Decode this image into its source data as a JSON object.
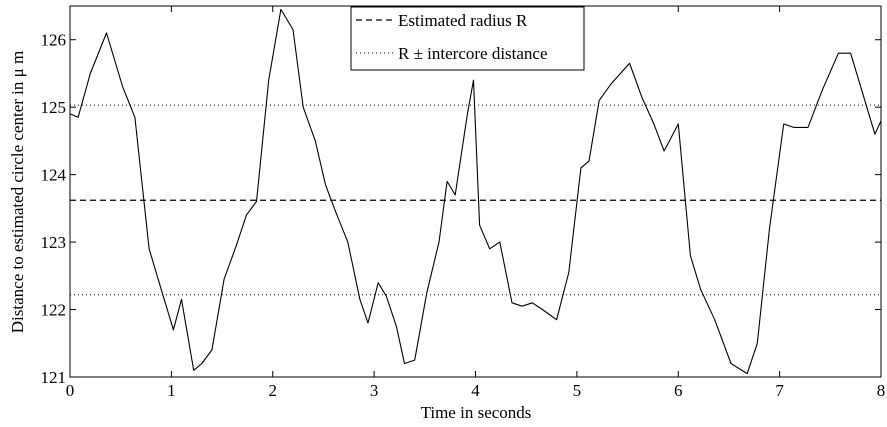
{
  "chart_data": {
    "type": "line",
    "xlabel": "Time in seconds",
    "ylabel": "Distance to estimated circle center in μ m",
    "xlim": [
      0,
      8
    ],
    "ylim": [
      121,
      126.5
    ],
    "x_ticks": [
      0,
      1,
      2,
      3,
      4,
      5,
      6,
      7,
      8
    ],
    "y_ticks": [
      121,
      122,
      123,
      124,
      125,
      126
    ],
    "x_tick_labels": [
      "0",
      "1",
      "2",
      "3",
      "4",
      "5",
      "6",
      "7",
      "8"
    ],
    "y_tick_labels": [
      "121",
      "122",
      "123",
      "124",
      "125",
      "126"
    ],
    "grid": false,
    "legend": {
      "placement": "top-center",
      "entries": [
        "Estimated radius R",
        "R ± intercore distance"
      ]
    },
    "reference_lines": {
      "estimated_radius": 123.62,
      "radius_upper": 125.03,
      "radius_lower": 122.22
    },
    "series": [
      {
        "x": [
          0.0,
          0.08,
          0.2,
          0.36,
          0.52,
          0.64,
          0.78,
          0.9,
          1.02,
          1.1,
          1.22,
          1.3,
          1.4,
          1.52,
          1.64,
          1.74,
          1.84,
          1.96,
          2.08,
          2.2,
          2.3,
          2.42,
          2.52,
          2.62,
          2.74,
          2.86,
          2.94,
          3.04,
          3.12,
          3.22,
          3.3,
          3.4,
          3.52,
          3.64,
          3.72,
          3.8,
          3.92,
          3.98,
          4.04,
          4.14,
          4.24,
          4.36,
          4.46,
          4.56,
          4.66,
          4.8,
          4.92,
          5.04,
          5.12,
          5.22,
          5.34,
          5.52,
          5.64,
          5.76,
          5.86,
          6.0,
          6.12,
          6.22,
          6.36,
          6.52,
          6.68,
          6.78,
          6.9,
          7.04,
          7.14,
          7.28,
          7.42,
          7.58,
          7.7,
          7.82,
          7.94,
          8.0
        ],
        "values": [
          124.9,
          124.85,
          125.5,
          126.1,
          125.3,
          124.85,
          122.9,
          122.3,
          121.7,
          122.15,
          121.1,
          121.2,
          121.4,
          122.45,
          122.95,
          123.4,
          123.6,
          125.4,
          126.45,
          126.15,
          125.0,
          124.5,
          123.85,
          123.45,
          123.0,
          122.15,
          121.8,
          122.4,
          122.2,
          121.75,
          121.2,
          121.25,
          122.25,
          123.0,
          123.9,
          123.7,
          124.9,
          125.4,
          123.25,
          122.9,
          123.0,
          122.1,
          122.05,
          122.1,
          122.0,
          121.85,
          122.55,
          124.1,
          124.2,
          125.1,
          125.35,
          125.65,
          125.15,
          124.75,
          124.35,
          124.75,
          122.8,
          122.3,
          121.85,
          121.2,
          121.05,
          121.5,
          123.2,
          124.75,
          124.7,
          124.7,
          125.25,
          125.8,
          125.8,
          125.2,
          124.6,
          124.8
        ]
      }
    ]
  }
}
